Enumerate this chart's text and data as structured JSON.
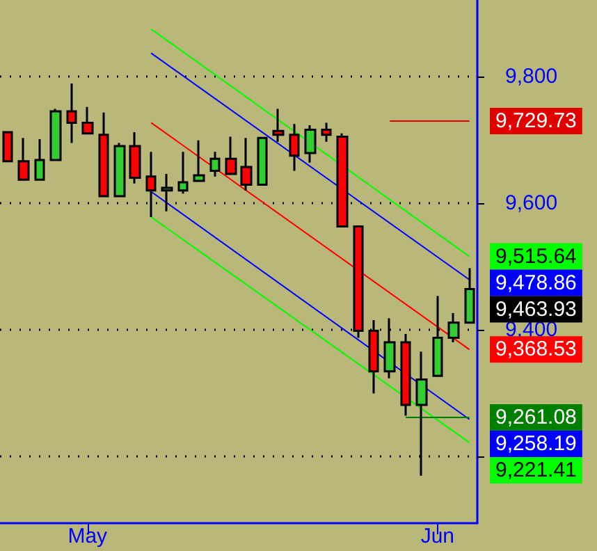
{
  "chart_data": {
    "type": "candlestick",
    "categories": [
      null,
      null,
      null,
      null,
      null,
      "May",
      null,
      null,
      null,
      null,
      null,
      null,
      null,
      null,
      null,
      null,
      null,
      null,
      null,
      null,
      null,
      null,
      null,
      null,
      null,
      null,
      null,
      "Jun",
      null,
      null
    ],
    "ohlc": [
      [
        9712,
        9712,
        9666,
        9666
      ],
      [
        9666,
        9703,
        9637,
        9637
      ],
      [
        9637,
        9701,
        9637,
        9668
      ],
      [
        9668,
        9749,
        9668,
        9745
      ],
      [
        9745,
        9789,
        9695,
        9727
      ],
      [
        9727,
        9752,
        9710,
        9710
      ],
      [
        9708,
        9743,
        9611,
        9611
      ],
      [
        9611,
        9695,
        9611,
        9690
      ],
      [
        9690,
        9712,
        9631,
        9640
      ],
      [
        9642,
        9681,
        9578,
        9620
      ],
      [
        9620,
        9646,
        9587,
        9624
      ],
      [
        9620,
        9681,
        9615,
        9633
      ],
      [
        9635,
        9699,
        9635,
        9644
      ],
      [
        9651,
        9681,
        9642,
        9670
      ],
      [
        9670,
        9705,
        9646,
        9646
      ],
      [
        9657,
        9703,
        9620,
        9629
      ],
      [
        9629,
        9703,
        9629,
        9703
      ],
      [
        9714,
        9749,
        9697,
        9708
      ],
      [
        9708,
        9725,
        9651,
        9675
      ],
      [
        9679,
        9723,
        9664,
        9716
      ],
      [
        9716,
        9727,
        9697,
        9708
      ],
      [
        9705,
        9710,
        9563,
        9563
      ],
      [
        9563,
        9563,
        9387,
        9398
      ],
      [
        9398,
        9415,
        9299,
        9334
      ],
      [
        9334,
        9418,
        9323,
        9380
      ],
      [
        9380,
        9393,
        9264,
        9281
      ],
      [
        9281,
        9365,
        9169,
        9321
      ],
      [
        9327,
        9453,
        9327,
        9387
      ],
      [
        9387,
        9426,
        9380,
        9411
      ],
      [
        9411,
        9497,
        9411,
        9463.93
      ]
    ],
    "colors": [
      "#ff0000",
      "#ff0000",
      "#33cc33",
      "#33cc33",
      "#ff0000",
      "#ff0000",
      "#ff0000",
      "#33cc33",
      "#ff0000",
      "#ff0000",
      "#33cc33",
      "#33cc33",
      "#33cc33",
      "#33cc33",
      "#ff0000",
      "#ff0000",
      "#33cc33",
      "#ff0000",
      "#ff0000",
      "#33cc33",
      "#ff0000",
      "#ff0000",
      "#ff0000",
      "#ff0000",
      "#33cc33",
      "#ff0000",
      "#33cc33",
      "#33cc33",
      "#33cc33",
      "#33cc33"
    ],
    "series": [
      {
        "type": "line",
        "color": "#00ff00",
        "values": [
          null,
          null,
          null,
          null,
          null,
          null,
          null,
          null,
          null,
          9875,
          null,
          null,
          null,
          null,
          null,
          null,
          null,
          null,
          null,
          null,
          null,
          null,
          null,
          null,
          null,
          null,
          null,
          null,
          null,
          9515.64
        ]
      },
      {
        "type": "line",
        "color": "#0000ff",
        "values": [
          null,
          null,
          null,
          null,
          null,
          null,
          null,
          null,
          null,
          9837,
          null,
          null,
          null,
          null,
          null,
          null,
          null,
          null,
          null,
          null,
          null,
          null,
          null,
          null,
          null,
          null,
          null,
          null,
          null,
          9478.86
        ]
      },
      {
        "type": "line",
        "color": "#ff0000",
        "values": [
          null,
          null,
          null,
          null,
          null,
          null,
          null,
          null,
          null,
          9727,
          null,
          null,
          null,
          null,
          null,
          null,
          null,
          null,
          null,
          null,
          null,
          null,
          null,
          null,
          null,
          null,
          null,
          null,
          null,
          9368.53
        ]
      },
      {
        "type": "line",
        "color": "#0000fe",
        "values": [
          null,
          null,
          null,
          null,
          null,
          null,
          null,
          null,
          null,
          9618,
          null,
          null,
          null,
          null,
          null,
          null,
          null,
          null,
          null,
          null,
          null,
          null,
          null,
          null,
          null,
          null,
          null,
          null,
          null,
          9258.19
        ]
      },
      {
        "type": "line",
        "color": "#00fe00",
        "values": [
          null,
          null,
          null,
          null,
          null,
          null,
          null,
          null,
          null,
          9578,
          null,
          null,
          null,
          null,
          null,
          null,
          null,
          null,
          null,
          null,
          null,
          null,
          null,
          null,
          null,
          null,
          null,
          null,
          null,
          9221.41
        ]
      },
      {
        "type": "line",
        "color": "#e00000",
        "values": [
          null,
          null,
          null,
          null,
          null,
          null,
          null,
          null,
          null,
          null,
          null,
          null,
          null,
          null,
          null,
          null,
          null,
          null,
          null,
          null,
          null,
          null,
          null,
          null,
          9729.73,
          null,
          null,
          null,
          null,
          9729.73
        ]
      },
      {
        "type": "line",
        "color": "#008000",
        "values": [
          null,
          null,
          null,
          null,
          null,
          null,
          null,
          null,
          null,
          null,
          null,
          null,
          null,
          null,
          null,
          null,
          null,
          null,
          null,
          null,
          null,
          null,
          null,
          null,
          null,
          9261.08,
          null,
          null,
          null,
          9261.08
        ]
      }
    ],
    "ylim": [
      9094,
      9921
    ],
    "yticks": [
      {
        "value": 9200,
        "label": null
      },
      {
        "value": 9400,
        "label": "9,400"
      },
      {
        "value": 9600,
        "label": "9,600"
      },
      {
        "value": 9800,
        "label": "9,800"
      }
    ],
    "grid": "y",
    "line_style": "solid",
    "annotations": [
      "9,729.73",
      "9,515.64",
      "9,478.86",
      "9,463.93",
      "9,368.53",
      "9,261.08",
      "9,258.19",
      "9,221.41"
    ]
  }
}
